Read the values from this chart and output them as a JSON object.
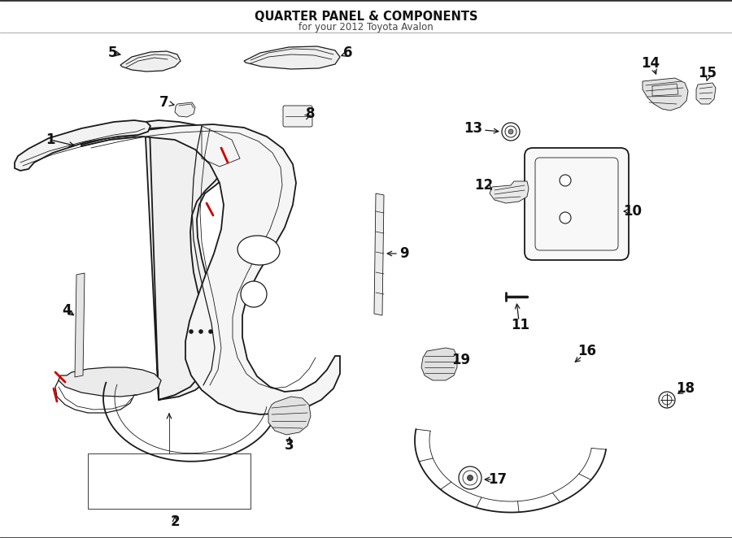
{
  "title": "QUARTER PANEL & COMPONENTS",
  "subtitle": "for your 2012 Toyota Avalon",
  "bg_color": "#ffffff",
  "line_color": "#1a1a1a",
  "red_color": "#cc0000",
  "label_color": "#111111"
}
